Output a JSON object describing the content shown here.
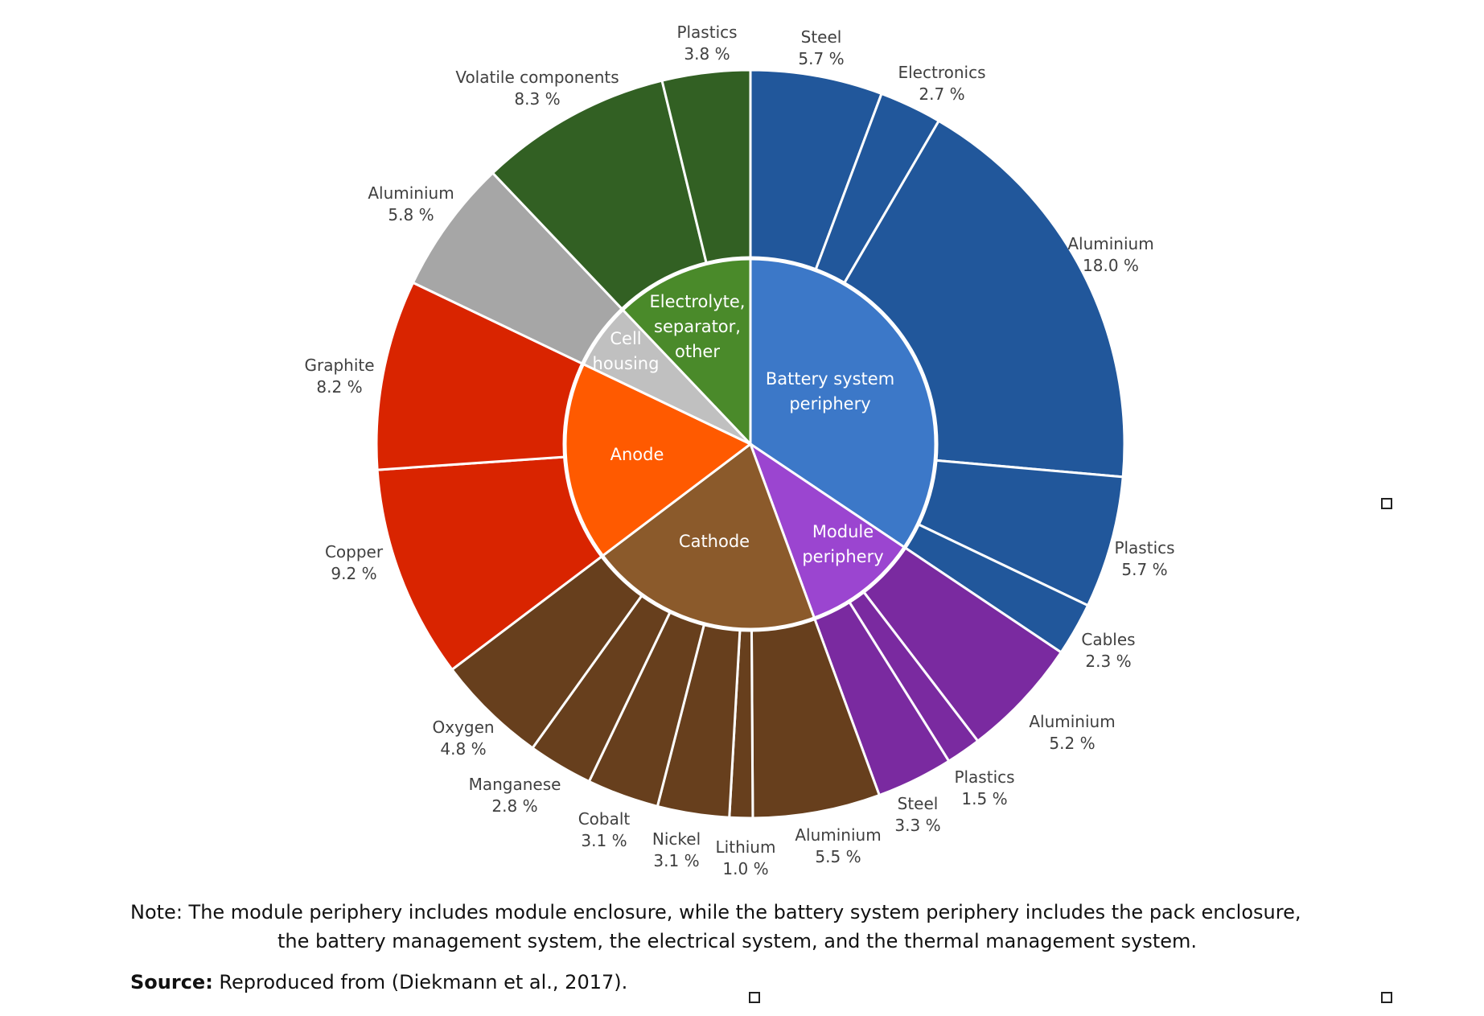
{
  "chart_data": {
    "type": "sunburst",
    "unit": "%",
    "groups": [
      {
        "name": [
          "Battery system",
          "periphery"
        ],
        "inner_color": "#3c78c8",
        "outer_color": "#21579b",
        "items": [
          {
            "label": "Steel",
            "value": 5.7
          },
          {
            "label": "Electronics",
            "value": 2.7
          },
          {
            "label": "Aluminium",
            "value": 18.0
          },
          {
            "label": "Plastics",
            "value": 5.7
          },
          {
            "label": "Cables",
            "value": 2.3
          }
        ]
      },
      {
        "name": [
          "Module",
          "periphery"
        ],
        "inner_color": "#9b45d0",
        "outer_color": "#7a2aa0",
        "items": [
          {
            "label": "Aluminium",
            "value": 5.2
          },
          {
            "label": "Plastics",
            "value": 1.5
          },
          {
            "label": "Steel",
            "value": 3.3
          }
        ]
      },
      {
        "name": [
          "Cathode"
        ],
        "inner_color": "#8b5a2b",
        "outer_color": "#673f1d",
        "items": [
          {
            "label": "Aluminium",
            "value": 5.5
          },
          {
            "label": "Lithium",
            "value": 1.0
          },
          {
            "label": "Nickel",
            "value": 3.1
          },
          {
            "label": "Cobalt",
            "value": 3.1
          },
          {
            "label": "Manganese",
            "value": 2.8
          },
          {
            "label": "Oxygen",
            "value": 4.8
          }
        ]
      },
      {
        "name": [
          "Anode"
        ],
        "inner_color": "#ff5a00",
        "outer_color": "#d92400",
        "items": [
          {
            "label": "Copper",
            "value": 9.2
          },
          {
            "label": "Graphite",
            "value": 8.2
          }
        ]
      },
      {
        "name": [
          "Cell",
          "housing"
        ],
        "inner_color": "#c0c0c0",
        "outer_color": "#a6a6a6",
        "items": [
          {
            "label": "Aluminium",
            "value": 5.8
          }
        ]
      },
      {
        "name": [
          "Electrolyte,",
          "separator,",
          "other"
        ],
        "inner_color": "#4a8a2a",
        "outer_color": "#326023",
        "items": [
          {
            "label": "Volatile components",
            "value": 8.3
          },
          {
            "label": "Plastics",
            "value": 3.8
          }
        ]
      }
    ]
  },
  "note": {
    "line1": "Note: The module periphery includes module enclosure, while the battery system periphery includes the pack enclosure,",
    "line2": "the battery management system, the electrical system, and the thermal management system."
  },
  "source": {
    "label": "Source:",
    "text": " Reproduced from (Diekmann et al., 2017)."
  }
}
